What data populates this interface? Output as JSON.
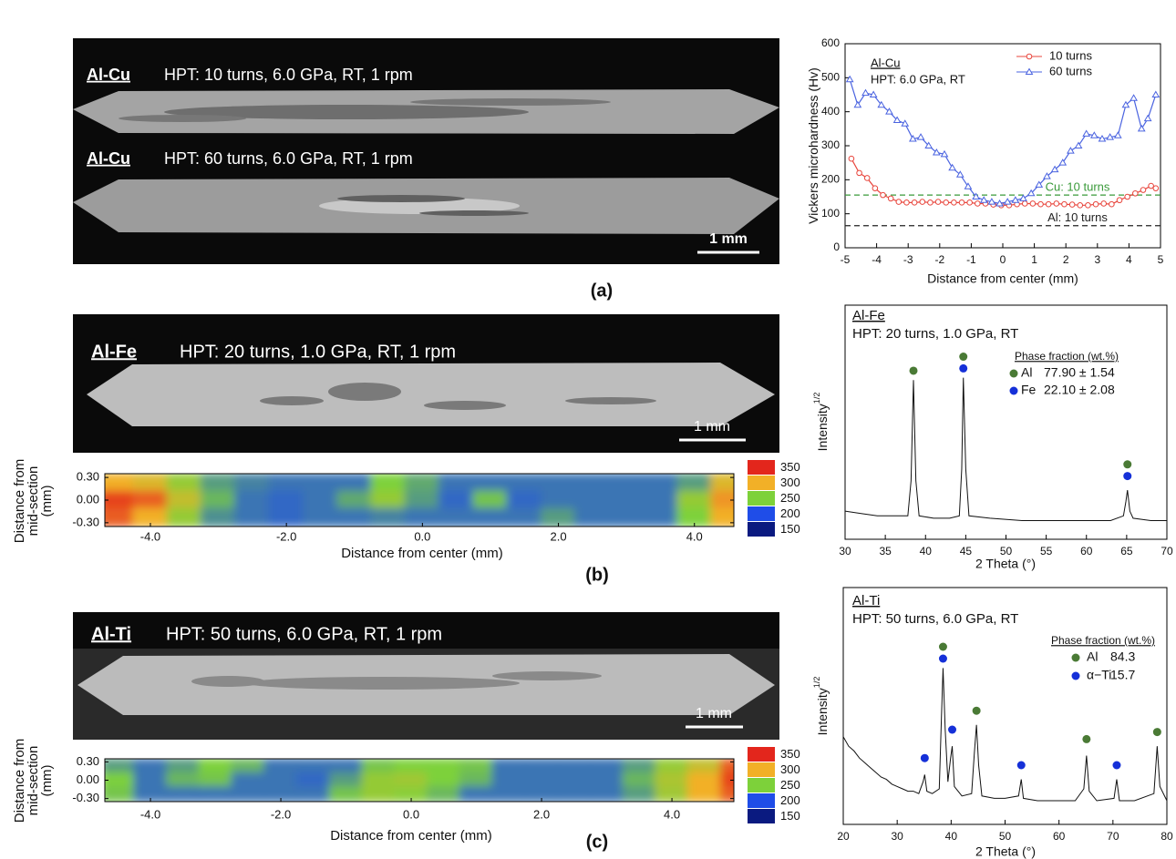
{
  "micrographs": [
    {
      "label": "Al-Cu",
      "caption": "HPT: 10 turns, 6.0 GPa, RT, 1 rpm"
    },
    {
      "label": "Al-Cu",
      "caption": "HPT: 60 turns, 6.0 GPa, RT, 1 rpm"
    },
    {
      "label": "Al-Fe",
      "caption": "HPT: 20 turns, 1.0 GPa, RT, 1 rpm"
    },
    {
      "label": "Al-Ti",
      "caption": "HPT: 50 turns, 6.0 GPa, RT, 1 rpm"
    }
  ],
  "scale_bars": [
    "1 mm",
    "1 mm",
    "1 mm"
  ],
  "panel_labels": [
    "(a)",
    "(b)",
    "(c)"
  ],
  "chart_data": [
    {
      "type": "line",
      "title": "Al-Cu",
      "subtitle": "HPT: 6.0 GPa, RT",
      "xlabel": "Distance from center (mm)",
      "ylabel": "Vickers microhardness (Hv)",
      "xlim": [
        -5,
        5
      ],
      "ylim": [
        0,
        600
      ],
      "xticks": [
        -5,
        -4,
        -3,
        -2,
        -1,
        0,
        1,
        2,
        3,
        4,
        5
      ],
      "yticks": [
        0,
        100,
        200,
        300,
        400,
        500,
        600
      ],
      "legend": "upper right",
      "series": [
        {
          "name": "10 turns",
          "color": "#e8453c",
          "marker": "circle",
          "x": [
            -4.8,
            -4.55,
            -4.3,
            -4.05,
            -3.8,
            -3.55,
            -3.3,
            -3.05,
            -2.8,
            -2.55,
            -2.3,
            -2.05,
            -1.8,
            -1.55,
            -1.3,
            -1.05,
            -0.8,
            -0.55,
            -0.3,
            -0.05,
            0.2,
            0.45,
            0.7,
            0.95,
            1.2,
            1.45,
            1.7,
            1.95,
            2.2,
            2.45,
            2.7,
            2.95,
            3.2,
            3.45,
            3.7,
            3.95,
            4.2,
            4.45,
            4.7,
            4.85
          ],
          "values": [
            262,
            220,
            205,
            175,
            155,
            145,
            135,
            133,
            133,
            135,
            133,
            135,
            133,
            133,
            133,
            133,
            130,
            130,
            127,
            125,
            125,
            128,
            130,
            130,
            128,
            128,
            130,
            128,
            127,
            125,
            125,
            128,
            130,
            128,
            140,
            150,
            160,
            170,
            182,
            175
          ]
        },
        {
          "name": "60 turns",
          "color": "#4a63e0",
          "marker": "triangle",
          "x": [
            -4.85,
            -4.6,
            -4.35,
            -4.1,
            -3.85,
            -3.6,
            -3.35,
            -3.1,
            -2.85,
            -2.6,
            -2.35,
            -2.1,
            -1.85,
            -1.6,
            -1.35,
            -1.1,
            -0.85,
            -0.6,
            -0.35,
            -0.1,
            0.15,
            0.4,
            0.65,
            0.9,
            1.15,
            1.4,
            1.65,
            1.9,
            2.15,
            2.4,
            2.65,
            2.9,
            3.15,
            3.4,
            3.65,
            3.9,
            4.15,
            4.4,
            4.6,
            4.85
          ],
          "values": [
            495,
            420,
            455,
            450,
            420,
            400,
            375,
            365,
            320,
            325,
            300,
            280,
            275,
            235,
            215,
            180,
            150,
            140,
            135,
            130,
            135,
            140,
            145,
            160,
            185,
            210,
            230,
            250,
            285,
            300,
            335,
            330,
            320,
            325,
            330,
            420,
            440,
            350,
            380,
            450
          ]
        }
      ],
      "reference_lines": [
        {
          "label": "Cu: 10 turns",
          "value": 155,
          "color": "#3a9a3a"
        },
        {
          "label": "Al: 10 turns",
          "value": 65,
          "color": "#222222"
        }
      ]
    },
    {
      "type": "heatmap",
      "xlabel": "Distance from center (mm)",
      "ylabel": [
        "Distance from",
        "mid-section",
        "(mm)"
      ],
      "xlim": [
        -4.67,
        4.58
      ],
      "ylim": [
        -0.35,
        0.35
      ],
      "xticks": [
        {
          "value": -4,
          "label": "-4.0"
        },
        {
          "value": -2,
          "label": "-2.0"
        },
        {
          "value": 0,
          "label": "0.0"
        },
        {
          "value": 2,
          "label": "2.0"
        },
        {
          "value": 4,
          "label": "4.0"
        }
      ],
      "yticks": [
        {
          "value": 0.3,
          "label": "0.30"
        },
        {
          "value": 0,
          "label": "0.00"
        },
        {
          "value": -0.3,
          "label": "-0.30"
        }
      ],
      "x": [
        -4.5,
        -4,
        -3.5,
        -3,
        -2.5,
        -2,
        -1.5,
        -1,
        -0.5,
        0,
        0.5,
        1,
        1.5,
        2,
        2.5,
        3,
        3.5,
        4,
        4.5
      ],
      "y": [
        0.23,
        0,
        -0.23
      ],
      "z": [
        [
          300,
          290,
          260,
          230,
          220,
          215,
          215,
          215,
          250,
          235,
          215,
          215,
          215,
          215,
          215,
          215,
          215,
          230,
          290
        ],
        [
          340,
          330,
          280,
          240,
          215,
          210,
          215,
          235,
          260,
          230,
          210,
          245,
          210,
          215,
          215,
          215,
          215,
          260,
          310
        ],
        [
          330,
          300,
          260,
          225,
          215,
          210,
          215,
          215,
          220,
          215,
          215,
          215,
          215,
          230,
          215,
          215,
          215,
          250,
          300
        ]
      ],
      "colorbar": {
        "ticks": [
          150,
          200,
          250,
          300,
          350
        ],
        "colors": [
          "#0a1a80",
          "#1f4de8",
          "#7dd13a",
          "#f2b027",
          "#e3261c"
        ]
      }
    },
    {
      "type": "line",
      "title": "Al-Fe",
      "subtitle": "HPT: 20 turns, 1.0 GPa, RT",
      "xlabel": "2 Theta (°)",
      "ylabel": "Intensity",
      "ylabel_superscript": "1/2",
      "xlim": [
        30,
        70
      ],
      "ylim": [
        0,
        100
      ],
      "xticks": [
        30,
        35,
        40,
        45,
        50,
        55,
        60,
        65,
        70
      ],
      "color": "#111111",
      "x": [
        30,
        32,
        34,
        36,
        37.8,
        38.2,
        38.5,
        38.8,
        39.2,
        41,
        43,
        44.2,
        44.5,
        44.7,
        45,
        45.4,
        48,
        52,
        56,
        60,
        63,
        64.6,
        64.9,
        65.1,
        65.4,
        65.8,
        68,
        70
      ],
      "values": [
        12,
        11,
        10,
        10,
        10,
        25,
        68,
        25,
        10,
        9,
        9,
        10,
        30,
        69,
        30,
        10,
        9,
        8,
        8,
        8,
        8,
        10,
        16,
        21,
        12,
        9,
        8,
        8
      ],
      "phases": {
        "title": "Phase fraction (wt.%)",
        "items": [
          {
            "name": "Al",
            "color": "#4a7a35",
            "fraction_label": "77.90 ± 1.54",
            "x": [
              38.5,
              44.7,
              65.1
            ],
            "y": [
              72,
              78,
              32
            ]
          },
          {
            "name": "Fe",
            "color": "#1530d8",
            "fraction_label": "22.10 ± 2.08",
            "x": [
              44.7,
              65.1
            ],
            "y": [
              73,
              27
            ]
          }
        ]
      }
    },
    {
      "type": "heatmap",
      "xlabel": "Distance from center (mm)",
      "ylabel": [
        "Distance from",
        "mid-section",
        "(mm)"
      ],
      "xlim": [
        -4.7,
        4.95
      ],
      "ylim": [
        -0.35,
        0.35
      ],
      "xticks": [
        {
          "value": -4,
          "label": "-4.0"
        },
        {
          "value": -2,
          "label": "-2.0"
        },
        {
          "value": 0,
          "label": "0.0"
        },
        {
          "value": 2,
          "label": "2.0"
        },
        {
          "value": 4,
          "label": "4.0"
        }
      ],
      "yticks": [
        {
          "value": 0.3,
          "label": "0.30"
        },
        {
          "value": 0,
          "label": "0.00"
        },
        {
          "value": -0.3,
          "label": "-0.30"
        }
      ],
      "x": [
        -4.5,
        -4,
        -3.5,
        -3,
        -2.5,
        -2,
        -1.5,
        -1,
        -0.5,
        0,
        0.5,
        1,
        1.5,
        2,
        2.5,
        3,
        3.5,
        4,
        4.5,
        5
      ],
      "y": [
        0.23,
        0,
        -0.23
      ],
      "z": [
        [
          230,
          215,
          230,
          250,
          240,
          215,
          215,
          215,
          245,
          250,
          250,
          245,
          215,
          215,
          215,
          215,
          230,
          260,
          280,
          330
        ],
        [
          250,
          215,
          240,
          245,
          215,
          215,
          210,
          230,
          260,
          265,
          250,
          240,
          215,
          215,
          215,
          215,
          240,
          270,
          300,
          340
        ],
        [
          245,
          215,
          215,
          215,
          215,
          215,
          215,
          245,
          260,
          255,
          240,
          215,
          215,
          215,
          215,
          215,
          230,
          265,
          300,
          330
        ]
      ],
      "colorbar": {
        "ticks": [
          150,
          200,
          250,
          300,
          350
        ],
        "colors": [
          "#0a1a80",
          "#1f4de8",
          "#7dd13a",
          "#f2b027",
          "#e3261c"
        ]
      }
    },
    {
      "type": "line",
      "title": "Al-Ti",
      "subtitle": "HPT: 50 turns, 6.0 GPa, RT",
      "xlabel": "2 Theta (°)",
      "ylabel": "Intensity",
      "ylabel_superscript": "1/2",
      "xlim": [
        20,
        80
      ],
      "ylim": [
        0,
        100
      ],
      "xticks": [
        20,
        30,
        40,
        50,
        60,
        70,
        80
      ],
      "color": "#111111",
      "x": [
        20,
        21,
        22,
        23,
        24,
        25,
        26,
        27,
        28,
        29,
        30,
        31,
        32,
        33,
        34,
        34.8,
        35.1,
        35.5,
        36.5,
        37.8,
        38.2,
        38.5,
        38.9,
        39.4,
        39.9,
        40.2,
        40.6,
        42,
        43.8,
        44.3,
        44.7,
        45.1,
        45.7,
        48,
        50,
        52.5,
        53,
        53.4,
        56,
        60,
        63,
        64.6,
        65.1,
        65.6,
        67,
        70.2,
        70.7,
        71.2,
        74,
        77.6,
        78.2,
        78.7,
        80
      ],
      "values": [
        37,
        33,
        31,
        28,
        26,
        24,
        22,
        20,
        19,
        17,
        16,
        15,
        14,
        14,
        13,
        18,
        21,
        14,
        13,
        15,
        45,
        66,
        40,
        18,
        28,
        33,
        16,
        12,
        13,
        30,
        42,
        25,
        12,
        11,
        11,
        12,
        19,
        11,
        10,
        10,
        10,
        15,
        29,
        14,
        10,
        11,
        19,
        10,
        10,
        13,
        33,
        16,
        10
      ],
      "phases": {
        "title": "Phase fraction (wt.%)",
        "items": [
          {
            "name": "Al",
            "color": "#4a7a35",
            "fraction_label": "84.3",
            "x": [
              38.5,
              44.7,
              65.1,
              78.2
            ],
            "y": [
              75,
              48,
              36,
              39
            ]
          },
          {
            "name": "α−Ti",
            "color": "#1530d8",
            "fraction_label": "15.7",
            "x": [
              35.1,
              38.5,
              40.2,
              53,
              70.7
            ],
            "y": [
              28,
              70,
              40,
              25,
              25
            ]
          }
        ]
      }
    }
  ]
}
